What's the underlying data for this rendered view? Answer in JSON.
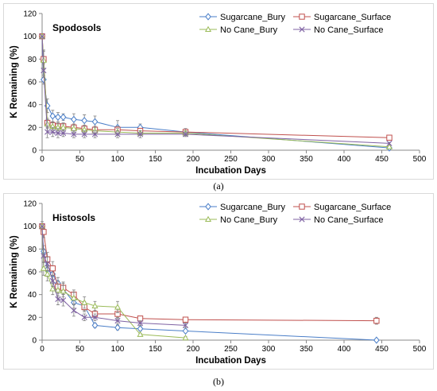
{
  "colors": {
    "Sugarcane_Bury": "#4a7ec8",
    "Sugarcane_Surface": "#c0504d",
    "No Cane_Bury": "#9bbb59",
    "No Cane_Surface": "#7f62a3",
    "error_bar": "#7f7f7f",
    "axis": "#888888"
  },
  "markers": {
    "Sugarcane_Bury": "diamond",
    "Sugarcane_Surface": "square",
    "No Cane_Bury": "triangle",
    "No Cane_Surface": "x-cross"
  },
  "chart_data": [
    {
      "type": "line",
      "panel_label": "(a)",
      "title": "Spodosols",
      "xlabel": "Incubation Days",
      "ylabel": "K Remaining (%)",
      "xlim": [
        0,
        500
      ],
      "ylim": [
        0,
        120
      ],
      "x_ticks": [
        "0",
        "50",
        "100",
        "150",
        "200",
        "250",
        "300",
        "350",
        "400",
        "450",
        "500"
      ],
      "y_ticks": [
        "0",
        "20",
        "40",
        "60",
        "80",
        "100",
        "120"
      ],
      "grid": false,
      "legend": "top-right, 2 columns",
      "series": [
        {
          "name": "Sugarcane_Bury",
          "x": [
            0,
            2,
            7,
            14,
            21,
            28,
            42,
            56,
            70,
            100,
            130,
            190,
            460
          ],
          "y": [
            100,
            62,
            39,
            30,
            29,
            29,
            27,
            26,
            25,
            20,
            20,
            16,
            2
          ],
          "err": [
            0,
            4,
            6,
            5,
            4,
            3,
            5,
            5,
            5,
            6,
            3,
            3,
            1
          ]
        },
        {
          "name": "Sugarcane_Surface",
          "x": [
            0,
            2,
            7,
            14,
            21,
            28,
            42,
            56,
            70,
            100,
            130,
            190,
            460
          ],
          "y": [
            100,
            80,
            24,
            22,
            21,
            21,
            20,
            19,
            18,
            18,
            17,
            16,
            11
          ],
          "err": [
            0,
            8,
            4,
            3,
            3,
            3,
            3,
            3,
            3,
            3,
            2,
            2,
            2
          ]
        },
        {
          "name": "No Cane_Bury",
          "x": [
            0,
            2,
            7,
            14,
            21,
            28,
            42,
            56,
            70,
            100,
            130,
            190,
            460
          ],
          "y": [
            100,
            79,
            23,
            21,
            20,
            20,
            19,
            18,
            17,
            16,
            15,
            15,
            3
          ],
          "err": [
            0,
            8,
            4,
            3,
            3,
            3,
            3,
            3,
            3,
            3,
            2,
            2,
            1
          ]
        },
        {
          "name": "No Cane_Surface",
          "x": [
            0,
            2,
            7,
            14,
            21,
            28,
            42,
            56,
            70,
            100,
            130,
            190,
            460
          ],
          "y": [
            100,
            70,
            16,
            16,
            15,
            15,
            14,
            14,
            14,
            14,
            14,
            14,
            6
          ],
          "err": [
            0,
            6,
            5,
            4,
            4,
            3,
            3,
            3,
            3,
            3,
            3,
            2,
            1
          ]
        }
      ]
    },
    {
      "type": "line",
      "panel_label": "(b)",
      "title": "Histosols",
      "xlabel": "Incubation Days",
      "ylabel": "K Remaining (%)",
      "xlim": [
        0,
        500
      ],
      "ylim": [
        0,
        120
      ],
      "x_ticks": [
        "0",
        "50",
        "100",
        "150",
        "200",
        "250",
        "300",
        "350",
        "400",
        "450",
        "500"
      ],
      "y_ticks": [
        "0",
        "20",
        "40",
        "60",
        "80",
        "100",
        "120"
      ],
      "grid": false,
      "legend": "top-right, 2 columns",
      "series": [
        {
          "name": "Sugarcane_Bury",
          "x": [
            0,
            2,
            7,
            14,
            21,
            28,
            42,
            56,
            70,
            100,
            130,
            190,
            443
          ],
          "y": [
            100,
            78,
            62,
            58,
            50,
            45,
            33,
            30,
            13,
            11,
            10,
            8,
            0
          ],
          "err": [
            0,
            5,
            6,
            6,
            5,
            5,
            5,
            4,
            2,
            2,
            2,
            1,
            0
          ]
        },
        {
          "name": "Sugarcane_Surface",
          "x": [
            0,
            2,
            7,
            14,
            21,
            28,
            42,
            56,
            70,
            100,
            130,
            190,
            443
          ],
          "y": [
            100,
            95,
            71,
            63,
            47,
            46,
            40,
            29,
            23,
            23,
            19,
            18,
            17
          ],
          "err": [
            4,
            5,
            6,
            6,
            5,
            5,
            4,
            4,
            3,
            4,
            2,
            2,
            3
          ]
        },
        {
          "name": "No Cane_Bury",
          "x": [
            0,
            2,
            7,
            14,
            21,
            28,
            42,
            56,
            70,
            100,
            130,
            190
          ],
          "y": [
            100,
            63,
            58,
            45,
            44,
            43,
            37,
            33,
            30,
            29,
            5,
            2
          ],
          "err": [
            0,
            6,
            6,
            5,
            5,
            5,
            5,
            5,
            4,
            5,
            1,
            1
          ]
        },
        {
          "name": "No Cane_Surface",
          "x": [
            0,
            2,
            7,
            14,
            21,
            28,
            42,
            56,
            70,
            100,
            130,
            190
          ],
          "y": [
            100,
            74,
            67,
            52,
            36,
            35,
            26,
            20,
            20,
            17,
            15,
            13
          ],
          "err": [
            0,
            6,
            6,
            5,
            5,
            5,
            5,
            3,
            3,
            3,
            2,
            2
          ]
        }
      ]
    }
  ]
}
